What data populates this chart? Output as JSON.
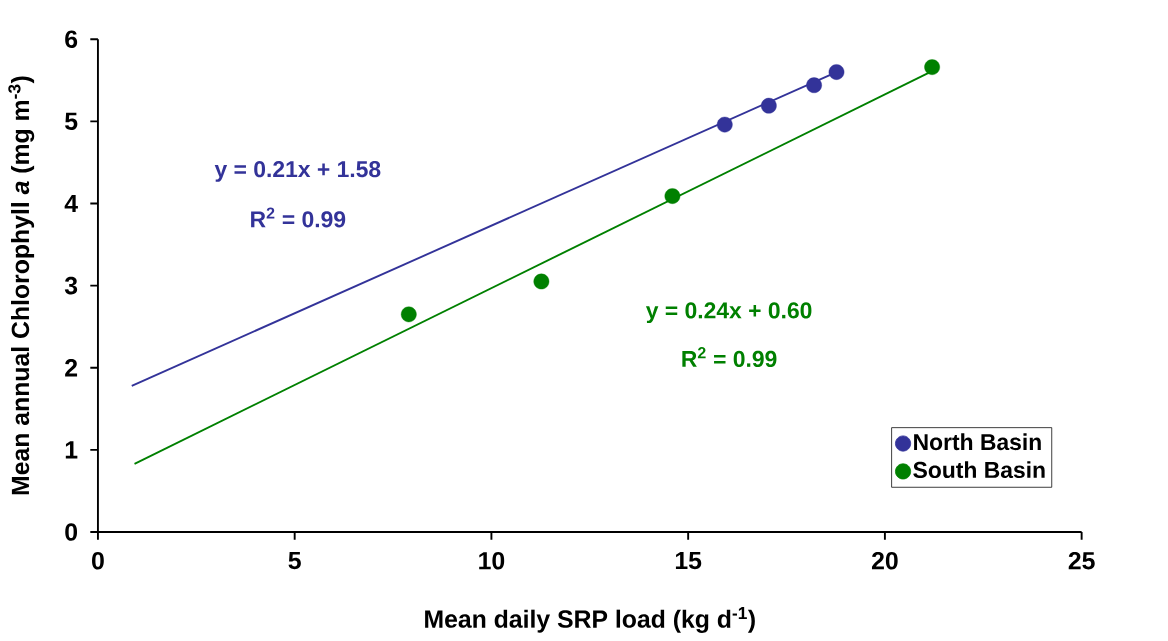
{
  "chart_data": {
    "type": "scatter",
    "xlabel": "Mean daily SRP load (kg d$^{-1}$)",
    "ylabel": "Mean annual Chlorophyll *a* (mg m$^{-3}$)",
    "xlim": [
      0,
      25
    ],
    "xticks": [
      0,
      5,
      10,
      15,
      20,
      25
    ],
    "ylim": [
      0,
      6
    ],
    "yticks": [
      0,
      1,
      2,
      3,
      4,
      5,
      6
    ],
    "grid": false,
    "legend": "bottom right",
    "series": [
      {
        "name": "North Basin",
        "marker": "circle",
        "color": "#333399",
        "x": [
          15.93,
          17.05,
          18.2,
          18.77
        ],
        "values": [
          4.96,
          5.19,
          5.44,
          5.6
        ]
      },
      {
        "name": "South Basin",
        "marker": "circle",
        "color": "#008000",
        "x": [
          7.9,
          11.27,
          14.6,
          21.2
        ],
        "values": [
          2.65,
          3.05,
          4.09,
          5.66
        ]
      },
      {
        "type": "line",
        "marker": "none",
        "color": "#333399",
        "x": [
          0.86,
          18.77
        ],
        "values": [
          1.78,
          5.6
        ]
      },
      {
        "type": "line",
        "marker": "none",
        "color": "#008000",
        "x": [
          0.93,
          21.2
        ],
        "values": [
          0.83,
          5.61
        ]
      }
    ],
    "annotations": [
      "y = 0.21x + 1.58",
      "R$^{2}$ = 0.99",
      "y = 0.24x + 0.60",
      "R$^{2}$ = 0.99"
    ]
  }
}
